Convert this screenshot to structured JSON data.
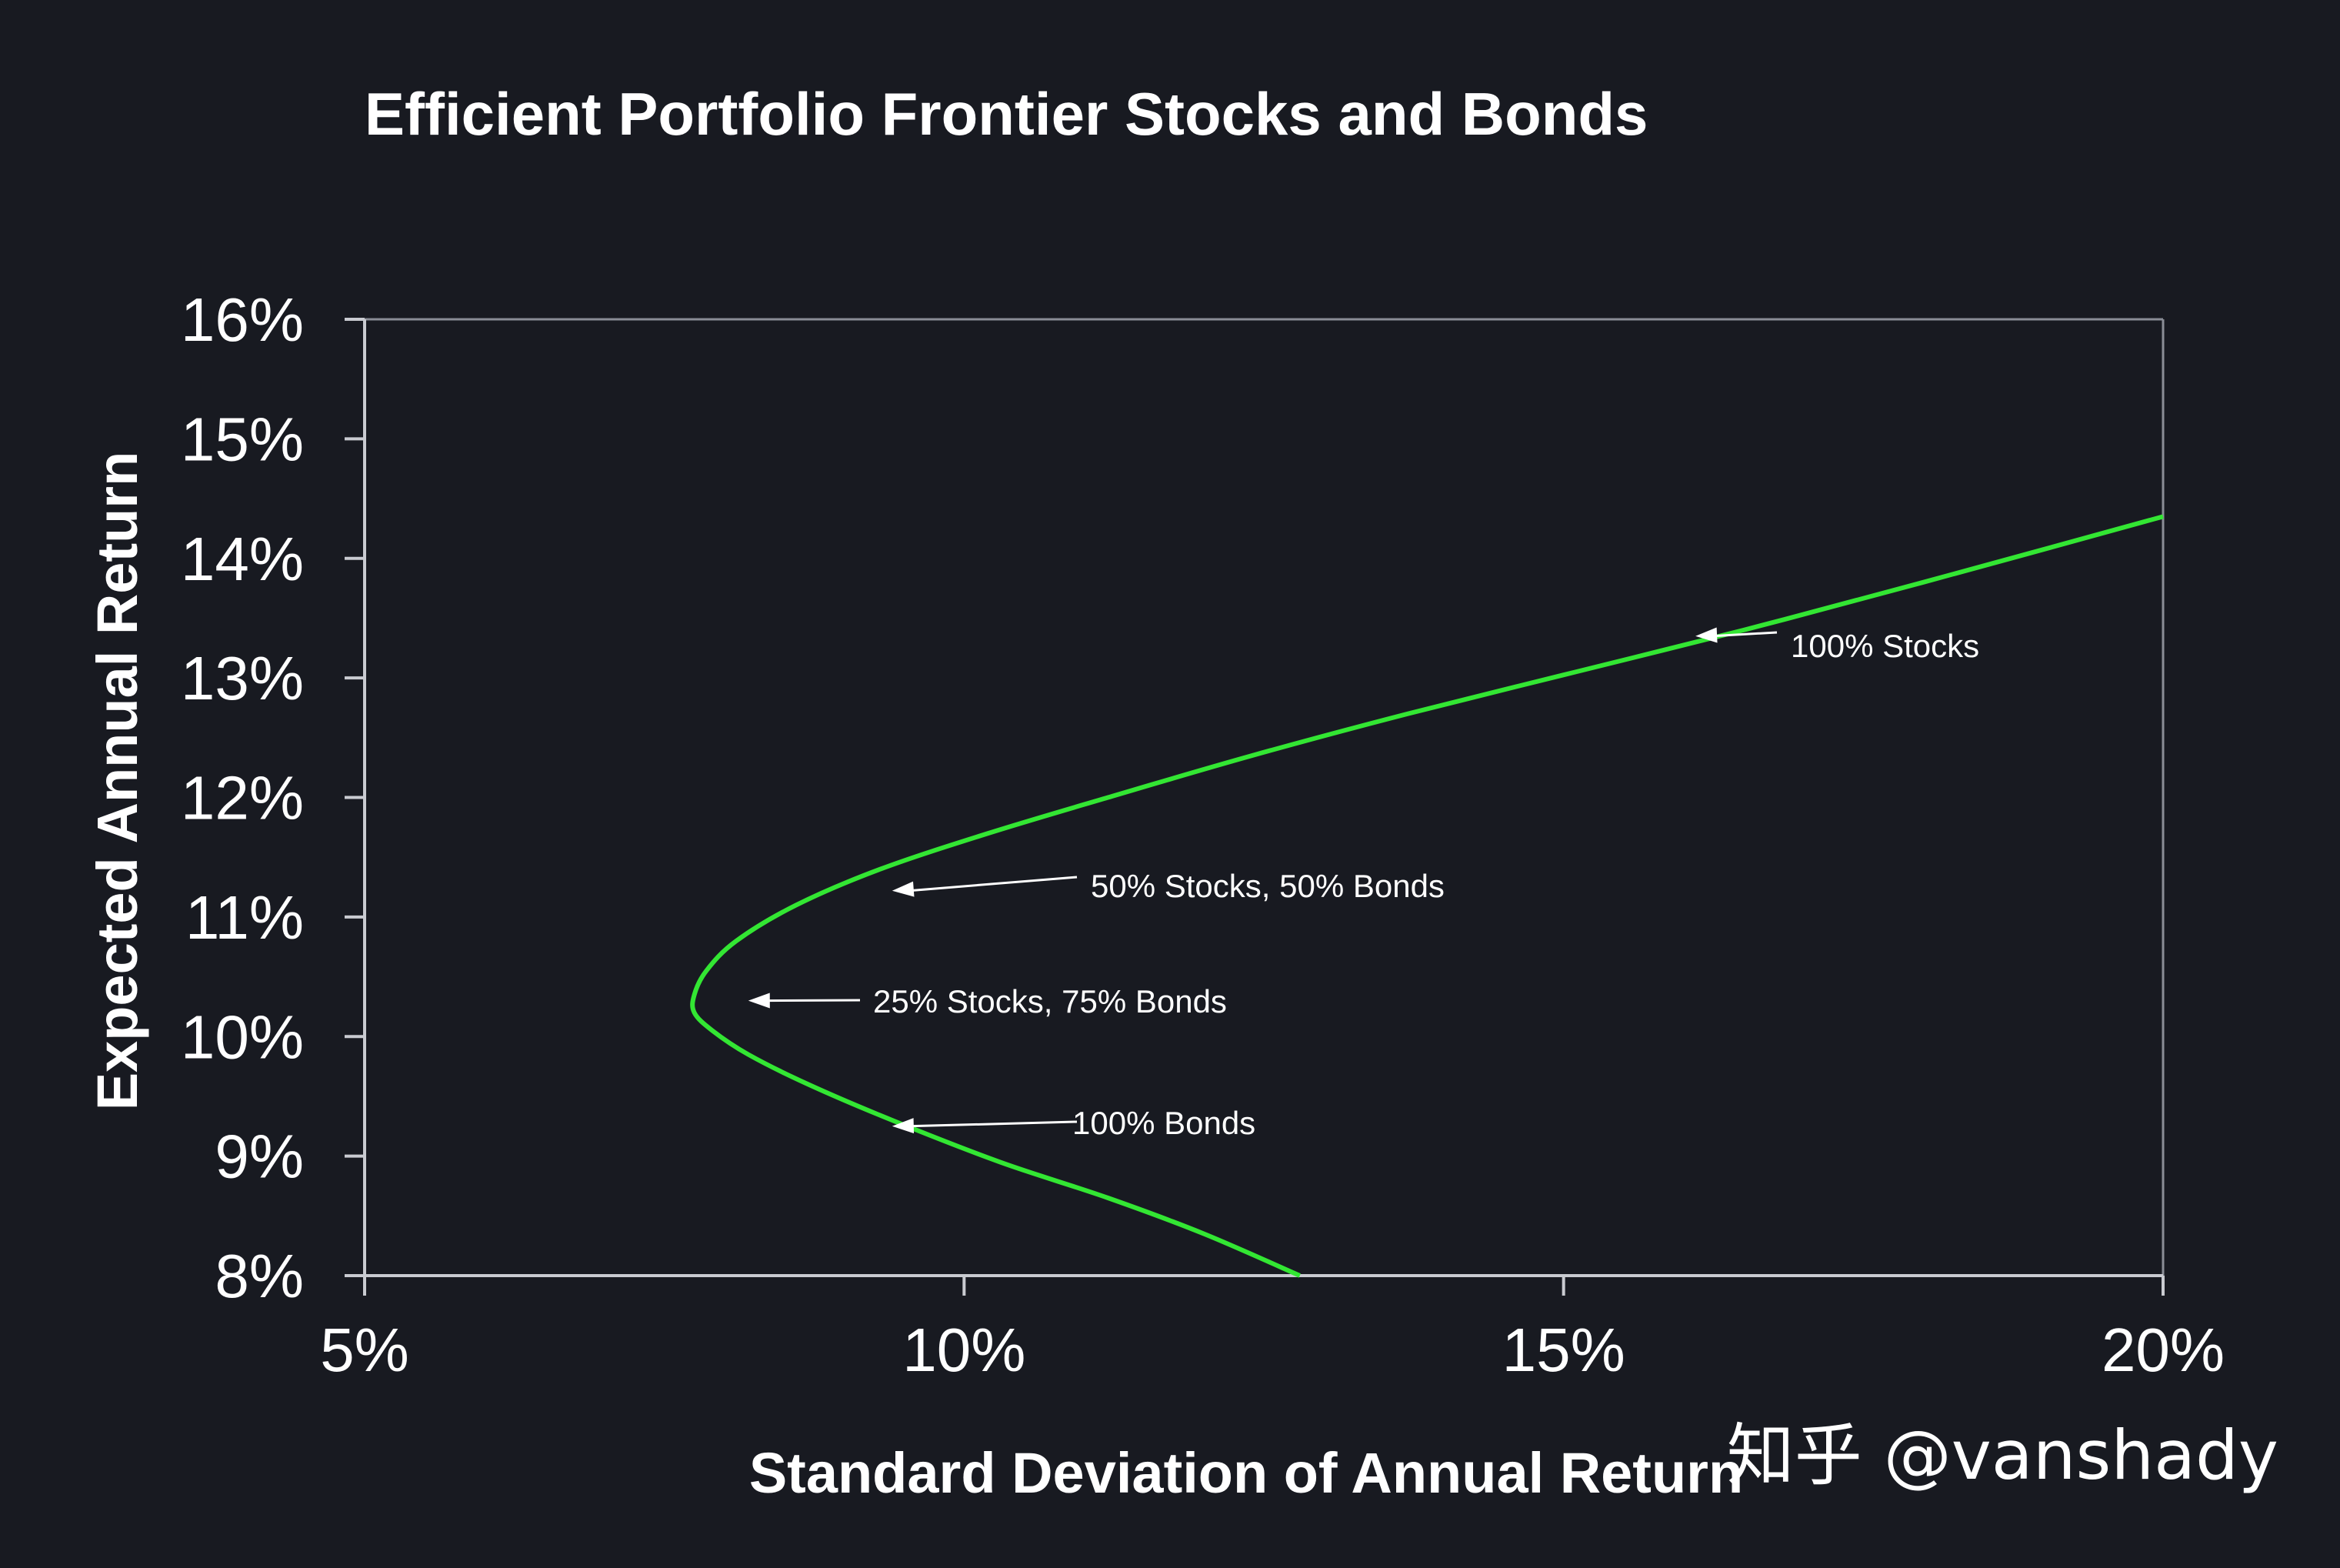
{
  "chart_data": {
    "type": "line",
    "title": "Efficient Portfolio Frontier Stocks and Bonds",
    "xlabel": "Standard Deviation of Annual Return",
    "ylabel": "Expected Annual Return",
    "xlim": [
      5,
      20
    ],
    "ylim": [
      8,
      16
    ],
    "x_ticks": [
      "5%",
      "10%",
      "15%",
      "20%"
    ],
    "y_ticks": [
      "8%",
      "9%",
      "10%",
      "11%",
      "12%",
      "13%",
      "14%",
      "15%",
      "16%"
    ],
    "grid": false,
    "legend": "none",
    "line_color": "#33e633",
    "series": [
      {
        "x": [
          12.8,
          12.0,
          11.2,
          10.3,
          9.4,
          8.7,
          8.2,
          7.9,
          7.75,
          7.75,
          7.85,
          8.1,
          8.6,
          9.3,
          10.2,
          11.2,
          12.4,
          13.7,
          15.1,
          16.5,
          18.0,
          20.0
        ],
        "y": [
          8.0,
          8.35,
          8.65,
          8.95,
          9.3,
          9.6,
          9.85,
          10.05,
          10.2,
          10.35,
          10.55,
          10.8,
          11.1,
          11.4,
          11.7,
          12.0,
          12.35,
          12.7,
          13.05,
          13.4,
          13.8,
          14.35
        ]
      }
    ],
    "annotations": [
      {
        "text": "100% Stocks",
        "x": 16.1,
        "y": 13.35
      },
      {
        "text": "50% Stocks, 50% Bonds",
        "x": 9.4,
        "y": 11.22
      },
      {
        "text": "25% Stocks, 75% Bonds",
        "x": 8.2,
        "y": 10.3
      },
      {
        "text": "100% Bonds",
        "x": 9.4,
        "y": 9.25
      }
    ]
  },
  "watermark": "知乎 @vanshady"
}
